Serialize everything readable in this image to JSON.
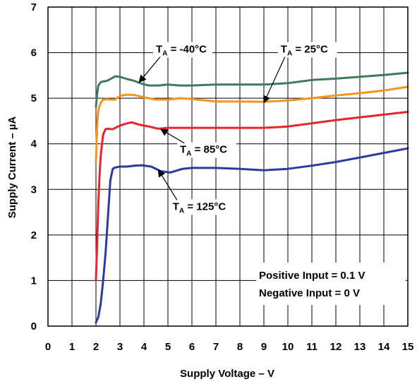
{
  "chart_data": {
    "type": "line",
    "title": "",
    "xlabel": "Supply Voltage – V",
    "ylabel": "Supply Current – µA",
    "xlim": [
      0,
      15
    ],
    "ylim": [
      0,
      7
    ],
    "xticks": [
      "0",
      "1",
      "2",
      "3",
      "4",
      "5",
      "6",
      "7",
      "8",
      "9",
      "10",
      "11",
      "12",
      "13",
      "14",
      "15"
    ],
    "yticks": [
      "0",
      "1",
      "2",
      "3",
      "4",
      "5",
      "6",
      "7"
    ],
    "grid": true,
    "legend": "none",
    "series": [
      {
        "name": "T_A = -40°C",
        "color": "#3f7a5a",
        "x": [
          2.0,
          2.05,
          2.1,
          2.2,
          2.3,
          2.45,
          2.6,
          2.8,
          3.0,
          3.3,
          3.6,
          3.9,
          4.2,
          4.6,
          5.0,
          5.5,
          6.0,
          7.0,
          8.0,
          9.0,
          10.0,
          11.0,
          12.0,
          13.0,
          14.0,
          15.0
        ],
        "values": [
          4.82,
          5.1,
          5.28,
          5.35,
          5.37,
          5.38,
          5.42,
          5.48,
          5.47,
          5.42,
          5.38,
          5.32,
          5.28,
          5.28,
          5.3,
          5.28,
          5.28,
          5.3,
          5.3,
          5.3,
          5.33,
          5.4,
          5.43,
          5.47,
          5.51,
          5.56
        ]
      },
      {
        "name": "T_A = 25°C",
        "color": "#f7941d",
        "x": [
          2.0,
          2.05,
          2.1,
          2.2,
          2.3,
          2.45,
          2.6,
          2.8,
          3.0,
          3.3,
          3.6,
          4.0,
          4.5,
          5.0,
          5.5,
          6.0,
          7.0,
          8.0,
          9.0,
          10.0,
          11.0,
          12.0,
          13.0,
          14.0,
          15.0
        ],
        "values": [
          3.58,
          4.4,
          4.75,
          4.9,
          4.97,
          4.98,
          4.97,
          4.97,
          5.05,
          5.08,
          5.07,
          5.02,
          4.97,
          4.97,
          5.0,
          4.98,
          4.93,
          4.93,
          4.92,
          4.95,
          5.0,
          5.06,
          5.11,
          5.17,
          5.25
        ]
      },
      {
        "name": "T_A = 85°C",
        "color": "#e8242a",
        "x": [
          2.0,
          2.05,
          2.1,
          2.15,
          2.2,
          2.3,
          2.4,
          2.5,
          2.7,
          3.0,
          3.3,
          3.5,
          3.8,
          4.2,
          4.6,
          5.0,
          6.0,
          7.0,
          8.0,
          9.0,
          10.0,
          11.0,
          12.0,
          13.0,
          14.0,
          15.0
        ],
        "values": [
          1.02,
          1.8,
          2.7,
          3.3,
          3.75,
          4.2,
          4.32,
          4.33,
          4.32,
          4.4,
          4.45,
          4.47,
          4.42,
          4.38,
          4.33,
          4.35,
          4.35,
          4.35,
          4.35,
          4.35,
          4.38,
          4.45,
          4.52,
          4.58,
          4.64,
          4.7
        ]
      },
      {
        "name": "T_A = 125°C",
        "color": "#2b3a9e",
        "x": [
          2.0,
          2.1,
          2.2,
          2.3,
          2.4,
          2.5,
          2.6,
          2.7,
          2.8,
          3.0,
          3.3,
          3.6,
          3.9,
          4.3,
          4.7,
          5.1,
          5.6,
          6.0,
          7.0,
          8.0,
          9.0,
          10.0,
          11.0,
          12.0,
          13.0,
          14.0,
          15.0
        ],
        "values": [
          0.08,
          0.2,
          0.5,
          1.0,
          1.6,
          2.4,
          3.2,
          3.45,
          3.48,
          3.5,
          3.5,
          3.52,
          3.53,
          3.5,
          3.4,
          3.37,
          3.45,
          3.47,
          3.47,
          3.45,
          3.42,
          3.45,
          3.52,
          3.6,
          3.7,
          3.8,
          3.9
        ]
      }
    ],
    "annotations": [
      {
        "main": "T",
        "sub": "A",
        "rest": " = -40°C",
        "point": [
          3.8,
          5.35
        ],
        "text_at": [
          4.5,
          6.0
        ]
      },
      {
        "main": "T",
        "sub": "A",
        "rest": " = 25°C",
        "point": [
          9.0,
          4.9
        ],
        "text_at": [
          9.7,
          6.0
        ]
      },
      {
        "main": "T",
        "sub": "A",
        "rest": " = 85°C",
        "point": [
          4.7,
          4.32
        ],
        "text_at": [
          5.5,
          3.8
        ]
      },
      {
        "main": "T",
        "sub": "A",
        "rest": " = 125°C",
        "point": [
          4.6,
          3.43
        ],
        "text_at": [
          5.2,
          2.55
        ]
      }
    ],
    "notes": [
      "Positive Input = 0.1 V",
      "Negative Input = 0 V"
    ]
  }
}
